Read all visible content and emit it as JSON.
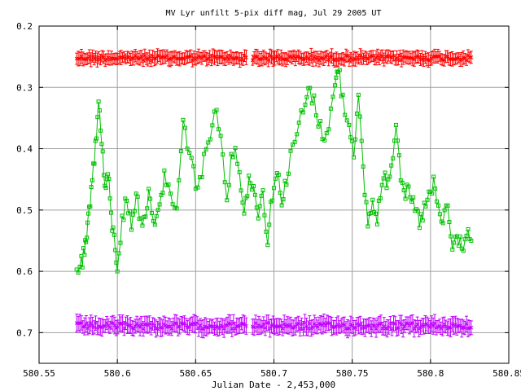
{
  "chart_data": {
    "type": "scatter",
    "title": "MV Lyr unfilt 5-pix diff mag, Jul 29 2005 UT",
    "xlabel": "Julian Date - 2,453,000",
    "ylabel": "",
    "xlim": [
      580.55,
      580.85
    ],
    "ylim": [
      0.75,
      0.2
    ],
    "y_inverted": true,
    "grid": true,
    "legend": "none",
    "x_ticks": [
      "580.55",
      "580.6",
      "580.65",
      "580.7",
      "580.75",
      "580.8",
      "580.85"
    ],
    "y_ticks": [
      "0.2",
      "0.3",
      "0.4",
      "0.5",
      "0.6",
      "0.7"
    ],
    "x_range_data": [
      580.574,
      580.826
    ],
    "series": [
      {
        "color": "#ff0000",
        "marker": "x with error bars",
        "style": "points",
        "mean": 0.252,
        "scatter": 0.004,
        "errorbar": 0.008
      },
      {
        "color": "#00c000",
        "marker": "open square",
        "style": "line with points",
        "keypoints": [
          [
            580.574,
            0.595
          ],
          [
            580.577,
            0.59
          ],
          [
            580.579,
            0.57
          ],
          [
            580.5805,
            0.55
          ],
          [
            580.582,
            0.5
          ],
          [
            580.584,
            0.44
          ],
          [
            580.586,
            0.4
          ],
          [
            580.588,
            0.325
          ],
          [
            580.59,
            0.38
          ],
          [
            580.592,
            0.47
          ],
          [
            580.594,
            0.44
          ],
          [
            580.596,
            0.51
          ],
          [
            580.598,
            0.55
          ],
          [
            580.6,
            0.59
          ],
          [
            580.603,
            0.52
          ],
          [
            580.606,
            0.48
          ],
          [
            580.609,
            0.53
          ],
          [
            580.612,
            0.47
          ],
          [
            580.615,
            0.52
          ],
          [
            580.618,
            0.5
          ],
          [
            580.621,
            0.47
          ],
          [
            580.624,
            0.53
          ],
          [
            580.627,
            0.5
          ],
          [
            580.63,
            0.44
          ],
          [
            580.634,
            0.48
          ],
          [
            580.638,
            0.5
          ],
          [
            580.642,
            0.36
          ],
          [
            580.646,
            0.4
          ],
          [
            580.65,
            0.46
          ],
          [
            580.654,
            0.44
          ],
          [
            580.658,
            0.39
          ],
          [
            580.662,
            0.33
          ],
          [
            580.666,
            0.38
          ],
          [
            580.67,
            0.47
          ],
          [
            580.674,
            0.4
          ],
          [
            580.678,
            0.43
          ],
          [
            580.681,
            0.51
          ],
          [
            580.684,
            0.44
          ],
          [
            580.687,
            0.47
          ],
          [
            580.69,
            0.5
          ],
          [
            580.693,
            0.47
          ],
          [
            580.696,
            0.55
          ],
          [
            580.699,
            0.47
          ],
          [
            580.702,
            0.44
          ],
          [
            580.705,
            0.48
          ],
          [
            580.708,
            0.45
          ],
          [
            580.712,
            0.4
          ],
          [
            580.716,
            0.36
          ],
          [
            580.72,
            0.33
          ],
          [
            580.723,
            0.3
          ],
          [
            580.727,
            0.34
          ],
          [
            580.731,
            0.38
          ],
          [
            580.735,
            0.36
          ],
          [
            580.739,
            0.3
          ],
          [
            580.741,
            0.265
          ],
          [
            580.744,
            0.32
          ],
          [
            580.748,
            0.36
          ],
          [
            580.751,
            0.4
          ],
          [
            580.754,
            0.32
          ],
          [
            580.757,
            0.44
          ],
          [
            580.76,
            0.52
          ],
          [
            580.763,
            0.49
          ],
          [
            580.766,
            0.51
          ],
          [
            580.769,
            0.46
          ],
          [
            580.772,
            0.45
          ],
          [
            580.775,
            0.43
          ],
          [
            580.778,
            0.35
          ],
          [
            580.781,
            0.44
          ],
          [
            580.784,
            0.47
          ],
          [
            580.787,
            0.48
          ],
          [
            580.79,
            0.5
          ],
          [
            580.793,
            0.52
          ],
          [
            580.796,
            0.5
          ],
          [
            580.799,
            0.48
          ],
          [
            580.802,
            0.46
          ],
          [
            580.805,
            0.5
          ],
          [
            580.808,
            0.52
          ],
          [
            580.811,
            0.49
          ],
          [
            580.814,
            0.57
          ],
          [
            580.817,
            0.54
          ],
          [
            580.82,
            0.56
          ],
          [
            580.823,
            0.54
          ],
          [
            580.826,
            0.55
          ]
        ]
      },
      {
        "color": "#c000ff",
        "marker": "x with error bars",
        "style": "points",
        "mean": 0.689,
        "scatter": 0.005,
        "errorbar": 0.01
      }
    ]
  }
}
